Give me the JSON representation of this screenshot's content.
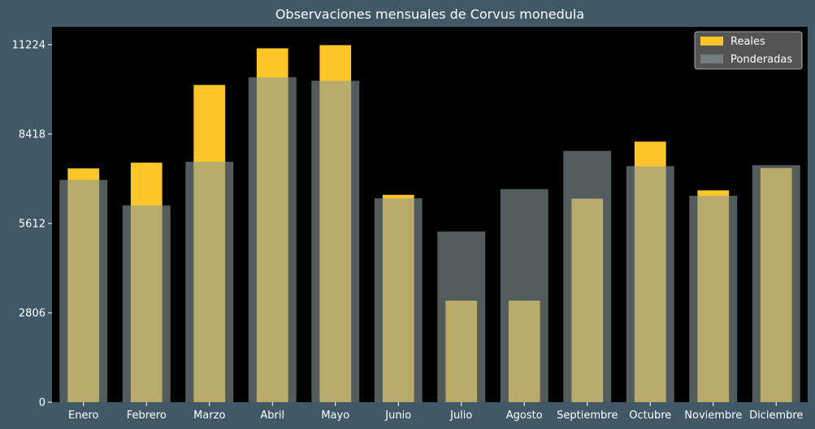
{
  "chart_data": {
    "type": "bar",
    "title": "Observaciones mensuales de Corvus monedula",
    "xlabel": "",
    "ylabel": "",
    "categories": [
      "Enero",
      "Febrero",
      "Marzo",
      "Abril",
      "Mayo",
      "Junio",
      "Julio",
      "Agosto",
      "Septiembre",
      "Octubre",
      "Noviembre",
      "Diciembre"
    ],
    "series": [
      {
        "name": "Reales",
        "color": "#ffc62a",
        "values": [
          7340,
          7520,
          9960,
          11110,
          11210,
          6510,
          3190,
          3190,
          6390,
          8180,
          6650,
          7350
        ]
      },
      {
        "name": "Ponderadas",
        "color": "#8a9a9a",
        "values": [
          6980,
          6180,
          7550,
          10200,
          10090,
          6400,
          5360,
          6690,
          7890,
          7410,
          6480,
          7440
        ]
      }
    ],
    "yticks": [
      0,
      2806,
      5612,
      8418,
      11224
    ],
    "ylim": [
      0,
      11785
    ],
    "legend": "top-right",
    "grid": false,
    "plot_background": "#000000",
    "figure_background": "#415866"
  }
}
